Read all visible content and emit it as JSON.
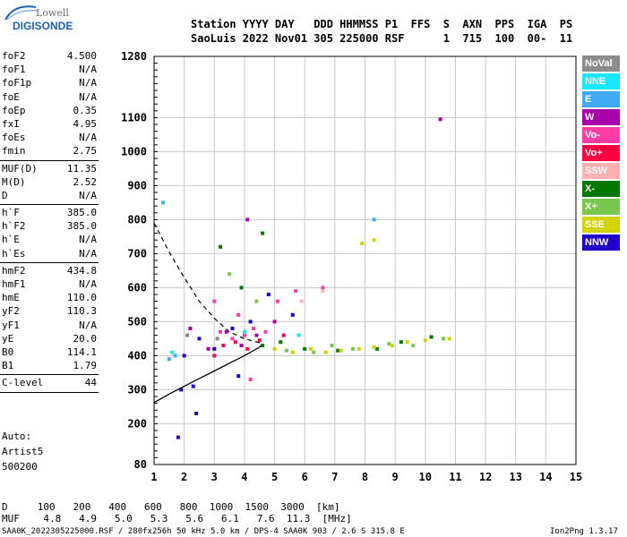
{
  "logo": {
    "top": "Lowell",
    "bottom": "DIGISONDE"
  },
  "header": {
    "labels_line": "Station YYYY DAY   DDD HHMMSS P1  FFS  S  AXN  PPS  IGA  PS",
    "values_line": "SaoLuis 2022 Nov01 305 225000 RSF      1  715  100  00-  11"
  },
  "params": [
    {
      "label": "foF2",
      "value": "4.500"
    },
    {
      "label": "foF1",
      "value": "N/A"
    },
    {
      "label": "foF1p",
      "value": "N/A"
    },
    {
      "label": "foE",
      "value": "N/A"
    },
    {
      "label": "foEp",
      "value": "0.35"
    },
    {
      "label": "fxI",
      "value": "4.95"
    },
    {
      "label": "foEs",
      "value": "N/A"
    },
    {
      "label": "fmin",
      "value": "2.75"
    },
    {
      "label": "MUF(D)",
      "value": "11.35",
      "sep": true
    },
    {
      "label": "M(D)",
      "value": "2.52"
    },
    {
      "label": "D",
      "value": "N/A"
    },
    {
      "label": "h`F",
      "value": "385.0",
      "sep": true
    },
    {
      "label": "h`F2",
      "value": "385.0"
    },
    {
      "label": "h`E",
      "value": "N/A"
    },
    {
      "label": "h`Es",
      "value": "N/A"
    },
    {
      "label": "hmF2",
      "value": "434.8",
      "sep": true
    },
    {
      "label": "hmF1",
      "value": "N/A"
    },
    {
      "label": "hmE",
      "value": "110.0"
    },
    {
      "label": "yF2",
      "value": "110.3"
    },
    {
      "label": "yF1",
      "value": "N/A"
    },
    {
      "label": "yE",
      "value": "20.0"
    },
    {
      "label": "B0",
      "value": "114.1"
    },
    {
      "label": "B1",
      "value": "1.79"
    },
    {
      "label": "C-level",
      "value": "44",
      "sep": true
    }
  ],
  "auto": {
    "line1": "Auto:",
    "line2": "Artist5",
    "line3": "500200"
  },
  "legend": [
    {
      "label": "NoVal",
      "color": "#8c8c8c"
    },
    {
      "label": "NNE",
      "color": "#19e6ff"
    },
    {
      "label": "E",
      "color": "#3fa9f5"
    },
    {
      "label": "W",
      "color": "#a800a8"
    },
    {
      "label": "Vo-",
      "color": "#ff3ea5"
    },
    {
      "label": "Vo+",
      "color": "#ff0040"
    },
    {
      "label": "SSW",
      "color": "#ffb0b0"
    },
    {
      "label": "X-",
      "color": "#007800"
    },
    {
      "label": "X+",
      "color": "#78c850"
    },
    {
      "label": "SSE",
      "color": "#d2d200"
    },
    {
      "label": "NNW",
      "color": "#2000c8"
    }
  ],
  "footer": {
    "d_line": "D     100   200   400   600   800  1000  1500  3000  [km]",
    "muf_line": "MUF    4.8   4.9   5.0   5.3   5.6   6.1   7.6  11.3  [MHz]",
    "file_line": "SAA0K_2022305225000.RSF / 280fx256h 50 kHz 5.0 km / DPS-4 SAA0K 903 / 2.6 S 315.8 E",
    "version": "Ion2Png 1.3.17"
  },
  "chart_data": {
    "type": "scatter",
    "title": "",
    "xlabel": "",
    "ylabel": "",
    "xlim": [
      1,
      15
    ],
    "ylim": [
      80,
      1280
    ],
    "x_ticks": [
      1,
      2,
      3,
      4,
      5,
      6,
      7,
      8,
      9,
      10,
      11,
      12,
      13,
      14,
      15
    ],
    "y_ticks": [
      80,
      200,
      300,
      400,
      500,
      600,
      700,
      800,
      900,
      1000,
      1100,
      1280
    ],
    "grid": true,
    "series": [
      {
        "name": "X-",
        "color": "#007800",
        "points": [
          [
            4.6,
            430
          ],
          [
            5.2,
            440
          ],
          [
            6.0,
            420
          ],
          [
            7.1,
            415
          ],
          [
            8.4,
            420
          ],
          [
            9.2,
            440
          ],
          [
            10.2,
            455
          ],
          [
            3.2,
            720
          ],
          [
            4.6,
            760
          ],
          [
            3.9,
            600
          ]
        ]
      },
      {
        "name": "X+",
        "color": "#78c850",
        "points": [
          [
            5.4,
            415
          ],
          [
            6.3,
            410
          ],
          [
            6.9,
            430
          ],
          [
            7.6,
            420
          ],
          [
            8.8,
            435
          ],
          [
            9.6,
            430
          ],
          [
            10.6,
            450
          ],
          [
            3.5,
            640
          ],
          [
            4.4,
            560
          ]
        ]
      },
      {
        "name": "SSE",
        "color": "#d2d200",
        "points": [
          [
            5.0,
            420
          ],
          [
            5.6,
            410
          ],
          [
            6.2,
            420
          ],
          [
            6.7,
            410
          ],
          [
            7.2,
            415
          ],
          [
            7.8,
            420
          ],
          [
            8.3,
            425
          ],
          [
            8.9,
            430
          ],
          [
            9.4,
            440
          ],
          [
            10.0,
            445
          ],
          [
            10.8,
            450
          ],
          [
            7.9,
            730
          ],
          [
            8.3,
            740
          ]
        ]
      },
      {
        "name": "Vo-",
        "color": "#ff3ea5",
        "points": [
          [
            3.2,
            470
          ],
          [
            3.6,
            450
          ],
          [
            4.0,
            460
          ],
          [
            4.3,
            480
          ],
          [
            4.7,
            470
          ],
          [
            5.1,
            560
          ],
          [
            5.7,
            590
          ],
          [
            6.6,
            600
          ],
          [
            4.2,
            330
          ],
          [
            3.8,
            520
          ],
          [
            3.0,
            560
          ]
        ]
      },
      {
        "name": "Vo+",
        "color": "#ff0040",
        "points": [
          [
            3.3,
            430
          ],
          [
            3.7,
            440
          ],
          [
            4.1,
            420
          ],
          [
            4.5,
            445
          ],
          [
            3.0,
            400
          ],
          [
            5.3,
            460
          ]
        ]
      },
      {
        "name": "W",
        "color": "#a800a8",
        "points": [
          [
            2.8,
            420
          ],
          [
            3.4,
            470
          ],
          [
            3.9,
            430
          ],
          [
            4.4,
            460
          ],
          [
            5.0,
            500
          ],
          [
            2.2,
            480
          ],
          [
            10.5,
            1095
          ],
          [
            4.1,
            800
          ]
        ]
      },
      {
        "name": "NNW",
        "color": "#2000c8",
        "points": [
          [
            2.0,
            400
          ],
          [
            2.5,
            450
          ],
          [
            3.0,
            420
          ],
          [
            3.6,
            480
          ],
          [
            4.2,
            500
          ],
          [
            1.9,
            300
          ],
          [
            2.3,
            310
          ],
          [
            2.4,
            230
          ],
          [
            1.8,
            160
          ],
          [
            3.8,
            340
          ],
          [
            4.8,
            580
          ],
          [
            5.6,
            520
          ]
        ]
      },
      {
        "name": "E",
        "color": "#3fa9f5",
        "points": [
          [
            1.5,
            390
          ],
          [
            1.7,
            400
          ],
          [
            8.3,
            800
          ],
          [
            1.3,
            850
          ]
        ]
      },
      {
        "name": "NNE",
        "color": "#19e6ff",
        "points": [
          [
            4.0,
            470
          ],
          [
            5.8,
            460
          ],
          [
            1.6,
            410
          ]
        ]
      },
      {
        "name": "SSW",
        "color": "#ffb0b0",
        "points": [
          [
            6.6,
            590
          ],
          [
            5.9,
            560
          ]
        ]
      },
      {
        "name": "NoVal",
        "color": "#8c8c8c",
        "points": [
          [
            2.1,
            460
          ],
          [
            3.1,
            450
          ]
        ]
      }
    ],
    "trace_solid": [
      [
        1.0,
        262
      ],
      [
        1.5,
        287
      ],
      [
        2.0,
        310
      ],
      [
        2.5,
        333
      ],
      [
        3.0,
        355
      ],
      [
        3.5,
        378
      ],
      [
        4.0,
        400
      ],
      [
        4.5,
        425
      ],
      [
        4.55,
        430
      ]
    ],
    "trace_dashed": [
      [
        1.0,
        790
      ],
      [
        1.5,
        705
      ],
      [
        2.0,
        630
      ],
      [
        2.5,
        560
      ],
      [
        3.0,
        510
      ],
      [
        3.5,
        470
      ],
      [
        4.0,
        450
      ],
      [
        4.5,
        438
      ]
    ]
  }
}
